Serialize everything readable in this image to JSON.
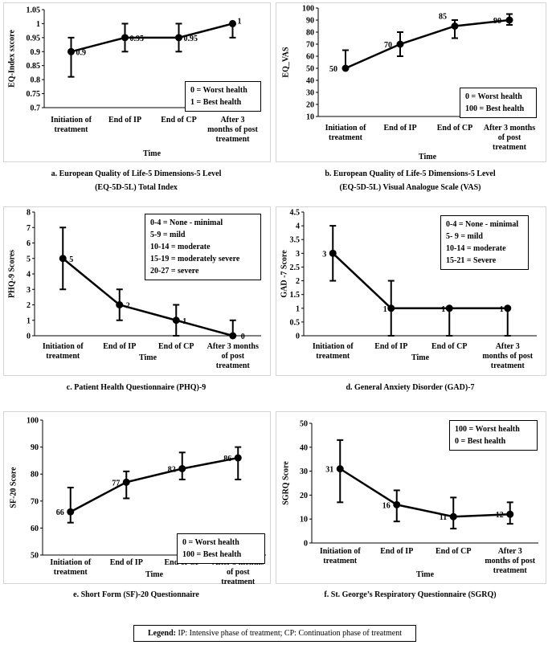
{
  "panels": [
    {
      "id": "a",
      "chart_data": {
        "type": "line",
        "categories": [
          "Initiation of\ntreatment",
          "End of IP",
          "End of CP",
          "After 3\nmonths of post\ntreatment"
        ],
        "values": [
          0.9,
          0.95,
          0.95,
          1
        ],
        "value_labels": [
          "0.9",
          "0.95",
          "0.95",
          "1"
        ],
        "error_low": [
          0.81,
          0.9,
          0.9,
          0.95
        ],
        "error_high": [
          0.95,
          1,
          1,
          1
        ],
        "ylim": [
          0.7,
          1.05
        ],
        "ystep": 0.05,
        "ydecimals": 2,
        "yticklabels": [
          "0.7",
          "0.75",
          "0.8",
          "0.85",
          "0.9",
          "0.95",
          "1",
          "1.05"
        ],
        "ylabel": "EQ-Index sxcore",
        "xlabel": "Time",
        "legend": [
          "0 = Worst health",
          "1 = Best health"
        ]
      },
      "caption": [
        "a.    European Quality of Life-5 Dimensions-5 Level",
        "(EQ-5D-5L) Total Index"
      ]
    },
    {
      "id": "b",
      "chart_data": {
        "type": "line",
        "categories": [
          "Initiation of\ntreatment",
          "End of IP",
          "End of CP",
          "After 3 months\nof post\ntreatment"
        ],
        "values": [
          50,
          70,
          85,
          90
        ],
        "value_labels": [
          "50",
          "70",
          "85",
          "90"
        ],
        "error_low": [
          50,
          60,
          75,
          86
        ],
        "error_high": [
          65,
          80,
          90,
          95
        ],
        "ylim": [
          10,
          100
        ],
        "ystep": 10,
        "yticklabels": [
          "10",
          "20",
          "30",
          "40",
          "50",
          "60",
          "70",
          "80",
          "90",
          "100"
        ],
        "ylabel": "EQ_VAS",
        "xlabel": "Time",
        "legend": [
          "0 = Worst health",
          "100 = Best health"
        ]
      },
      "caption": [
        "b.    European Quality of Life-5 Dimensions-5 Level",
        "(EQ-5D-5L) Visual Analogue Scale (VAS)"
      ]
    },
    {
      "id": "c",
      "chart_data": {
        "type": "line",
        "categories": [
          "Initiation of\ntreatment",
          "End of IP",
          "End of CP",
          "After 3 months\nof post\ntreatment"
        ],
        "values": [
          5,
          2,
          1,
          0
        ],
        "value_labels": [
          "5",
          "2",
          "1",
          "0"
        ],
        "error_low": [
          3,
          1,
          0,
          0
        ],
        "error_high": [
          7,
          3,
          2,
          1
        ],
        "ylim": [
          0,
          8
        ],
        "ystep": 1,
        "yticklabels": [
          "0",
          "1",
          "2",
          "3",
          "4",
          "5",
          "6",
          "7",
          "8"
        ],
        "ylabel": "PHQ-9 Scores",
        "xlabel": "Time",
        "legend": [
          "0-4 = None - minimal",
          "5-9 = mild",
          "10-14 = moderate",
          "15-19 = moderately severe",
          "20-27 = severe"
        ]
      },
      "caption": [
        "c. Patient Health Questionnaire (PHQ)-9"
      ]
    },
    {
      "id": "d",
      "chart_data": {
        "type": "line",
        "categories": [
          "Initiation of\ntreatment",
          "End of IP",
          "End of CP",
          "After 3\nmonths of post\ntreatment"
        ],
        "values": [
          3,
          1,
          1,
          1
        ],
        "value_labels": [
          "3",
          "1",
          "1",
          "1"
        ],
        "error_low": [
          2,
          0,
          0,
          0
        ],
        "error_high": [
          4,
          2,
          1,
          1
        ],
        "ylim": [
          0,
          4.5
        ],
        "ystep": 0.5,
        "yticklabels": [
          "0",
          "0.5",
          "1",
          "1.5",
          "2",
          "2.5",
          "3",
          "3.5",
          "4",
          "4.5"
        ],
        "ylabel": "GAD -7 Score",
        "xlabel": "Time",
        "legend": [
          "0-4 = None - minimal",
          "5- 9 = mild",
          "10-14 = moderate",
          "15-21 = Severe"
        ]
      },
      "caption": [
        "d. General Anxiety Disorder (GAD)-7"
      ]
    },
    {
      "id": "e",
      "chart_data": {
        "type": "line",
        "categories": [
          "Initiation of\ntreatment",
          "End of IP",
          "End of CP",
          "After 3 months\nof post\ntreatment"
        ],
        "values": [
          66,
          77,
          82,
          86
        ],
        "value_labels": [
          "66",
          "77",
          "82",
          "86"
        ],
        "error_low": [
          62,
          71,
          78,
          78
        ],
        "error_high": [
          75,
          81,
          88,
          90
        ],
        "ylim": [
          50,
          100
        ],
        "ystep": 10,
        "yticklabels": [
          "50",
          "60",
          "70",
          "80",
          "90",
          "100"
        ],
        "ylabel": "SF-20 Score",
        "xlabel": "Time",
        "legend": [
          "0 = Worst health",
          "100 = Best health"
        ]
      },
      "caption": [
        "e. Short Form (SF)-20 Questionnaire"
      ]
    },
    {
      "id": "f",
      "chart_data": {
        "type": "line",
        "categories": [
          "Initiation of\ntreatment",
          "End of IP",
          "End of CP",
          "After 3\nmonths of post\ntreatment"
        ],
        "values": [
          31,
          16,
          11,
          12
        ],
        "value_labels": [
          "31",
          "16",
          "11",
          "12"
        ],
        "error_low": [
          17,
          9,
          6,
          8
        ],
        "error_high": [
          43,
          22,
          19,
          17
        ],
        "ylim": [
          0,
          50
        ],
        "ystep": 10,
        "yticklabels": [
          "0",
          "10",
          "20",
          "30",
          "40",
          "50"
        ],
        "ylabel": "SGRQ Score",
        "xlabel": "Time",
        "legend": [
          "100 = Worst health",
          "0 = Best health"
        ]
      },
      "caption": [
        "f. St. George’s Respiratory Questionnaire (SGRQ)"
      ]
    }
  ],
  "footer": {
    "legend_title": "Legend:",
    "legend_text": " IP: Intensive phase of treatment; CP: Continuation phase of treatment"
  }
}
